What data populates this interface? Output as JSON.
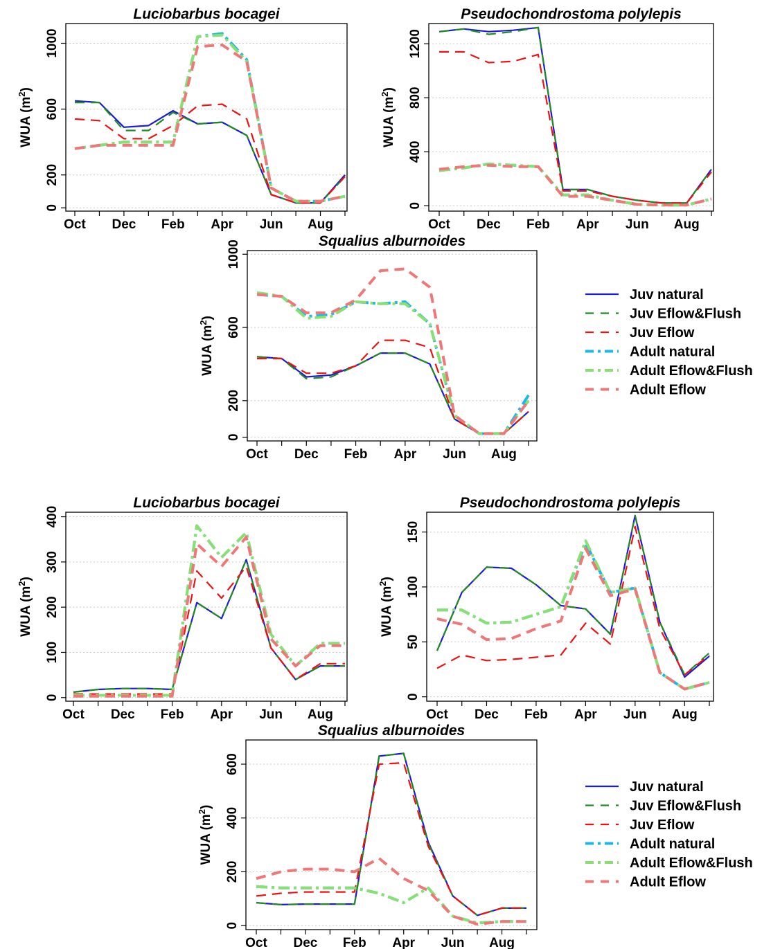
{
  "figure": {
    "colors": {
      "juv_natural": "#1a1adb",
      "juv_eflow_flush": "#228b22",
      "juv_eflow": "#ee1111",
      "adult_natural": "#1ab8ee",
      "adult_eflow_flush": "#88e070",
      "adult_eflow": "#ee7777"
    },
    "legends": [
      {
        "entries": [
          "Juv natural",
          "Juv Eflow&Flush",
          "Juv Eflow",
          "Adult natural",
          "Adult Eflow&Flush",
          "Adult Eflow"
        ]
      },
      {
        "entries": [
          "Juv natural",
          "Juv Eflow&Flush",
          "Juv Eflow",
          "Adult natural",
          "Adult Eflow&Flush",
          "Adult Eflow"
        ]
      }
    ]
  },
  "chart_data": [
    {
      "type": "line",
      "title": "Luciobarbus bocagei",
      "ylabel": "WUA (m²)",
      "x": [
        "Oct",
        "Nov",
        "Dec",
        "Jan",
        "Feb",
        "Mar",
        "Apr",
        "May",
        "Jun",
        "Jul",
        "Aug",
        "Sep"
      ],
      "xtick_labels": [
        "Oct",
        "Dec",
        "Feb",
        "Apr",
        "Jun",
        "Aug"
      ],
      "yticks": [
        0,
        200,
        600,
        1000
      ],
      "ylim": [
        -20,
        1120
      ],
      "grid": true,
      "series": [
        {
          "name": "Juv natural",
          "style": "solid",
          "color_key": "juv_natural",
          "values": [
            650,
            640,
            490,
            500,
            590,
            510,
            520,
            440,
            80,
            30,
            30,
            200
          ]
        },
        {
          "name": "Juv Eflow&Flush",
          "style": "dashed",
          "color_key": "juv_eflow_flush",
          "values": [
            640,
            640,
            470,
            470,
            580,
            510,
            520,
            440,
            80,
            30,
            30,
            190
          ]
        },
        {
          "name": "Juv Eflow",
          "style": "dashed",
          "color_key": "juv_eflow",
          "values": [
            540,
            530,
            420,
            420,
            500,
            620,
            630,
            540,
            80,
            30,
            30,
            190
          ]
        },
        {
          "name": "Adult natural",
          "style": "dashdot",
          "color_key": "adult_natural",
          "values": [
            360,
            380,
            400,
            400,
            400,
            1040,
            1060,
            900,
            120,
            40,
            40,
            70
          ]
        },
        {
          "name": "Adult Eflow&Flush",
          "style": "dashdot",
          "color_key": "adult_eflow_flush",
          "values": [
            360,
            380,
            400,
            400,
            400,
            1040,
            1050,
            890,
            120,
            40,
            40,
            70
          ]
        },
        {
          "name": "Adult Eflow",
          "style": "dashed",
          "color_key": "adult_eflow",
          "values": [
            360,
            380,
            380,
            380,
            380,
            980,
            990,
            890,
            120,
            40,
            40,
            70
          ]
        }
      ]
    },
    {
      "type": "line",
      "title": "Pseudochondrostoma polylepis",
      "ylabel": "WUA (m²)",
      "x": [
        "Oct",
        "Nov",
        "Dec",
        "Jan",
        "Feb",
        "Mar",
        "Apr",
        "May",
        "Jun",
        "Jul",
        "Aug",
        "Sep"
      ],
      "xtick_labels": [
        "Oct",
        "Dec",
        "Feb",
        "Apr",
        "Jun",
        "Aug"
      ],
      "yticks": [
        0,
        400,
        800,
        1200
      ],
      "ylim": [
        -40,
        1350
      ],
      "grid": true,
      "series": [
        {
          "name": "Juv natural",
          "style": "solid",
          "color_key": "juv_natural",
          "values": [
            1290,
            1310,
            1290,
            1300,
            1320,
            120,
            120,
            70,
            40,
            20,
            20,
            270
          ]
        },
        {
          "name": "Juv Eflow&Flush",
          "style": "dashed",
          "color_key": "juv_eflow_flush",
          "values": [
            1290,
            1310,
            1270,
            1290,
            1320,
            120,
            120,
            70,
            40,
            20,
            20,
            270
          ]
        },
        {
          "name": "Juv Eflow",
          "style": "dashed",
          "color_key": "juv_eflow",
          "values": [
            1140,
            1140,
            1060,
            1070,
            1120,
            110,
            110,
            70,
            40,
            20,
            20,
            250
          ]
        },
        {
          "name": "Adult natural",
          "style": "dashdot",
          "color_key": "adult_natural",
          "values": [
            260,
            280,
            310,
            300,
            290,
            80,
            80,
            40,
            10,
            5,
            5,
            50
          ]
        },
        {
          "name": "Adult Eflow&Flush",
          "style": "dashdot",
          "color_key": "adult_eflow_flush",
          "values": [
            260,
            280,
            310,
            300,
            290,
            80,
            80,
            40,
            10,
            5,
            5,
            50
          ]
        },
        {
          "name": "Adult Eflow",
          "style": "dashed",
          "color_key": "adult_eflow",
          "values": [
            270,
            290,
            300,
            290,
            290,
            70,
            70,
            40,
            10,
            5,
            5,
            50
          ]
        }
      ]
    },
    {
      "type": "line",
      "title": "Squalius alburnoides",
      "ylabel": "WUA (m²)",
      "x": [
        "Oct",
        "Nov",
        "Dec",
        "Jan",
        "Feb",
        "Mar",
        "Apr",
        "May",
        "Jun",
        "Jul",
        "Aug",
        "Sep"
      ],
      "xtick_labels": [
        "Oct",
        "Dec",
        "Feb",
        "Apr",
        "Jun",
        "Aug"
      ],
      "yticks": [
        0,
        200,
        600,
        1000
      ],
      "ylim": [
        -20,
        1020
      ],
      "grid": true,
      "series": [
        {
          "name": "Juv natural",
          "style": "solid",
          "color_key": "juv_natural",
          "values": [
            440,
            430,
            330,
            340,
            390,
            460,
            460,
            400,
            100,
            20,
            20,
            140
          ]
        },
        {
          "name": "Juv Eflow&Flush",
          "style": "dashed",
          "color_key": "juv_eflow_flush",
          "values": [
            440,
            430,
            320,
            330,
            390,
            460,
            460,
            400,
            100,
            20,
            20,
            140
          ]
        },
        {
          "name": "Juv Eflow",
          "style": "dashed",
          "color_key": "juv_eflow",
          "values": [
            430,
            430,
            350,
            350,
            390,
            530,
            530,
            490,
            100,
            20,
            20,
            140
          ]
        },
        {
          "name": "Adult natural",
          "style": "dashdot",
          "color_key": "adult_natural",
          "values": [
            780,
            770,
            660,
            670,
            740,
            730,
            740,
            620,
            120,
            20,
            20,
            230
          ]
        },
        {
          "name": "Adult Eflow&Flush",
          "style": "dashdot",
          "color_key": "adult_eflow_flush",
          "values": [
            790,
            770,
            650,
            660,
            740,
            730,
            730,
            620,
            120,
            20,
            20,
            200
          ]
        },
        {
          "name": "Adult Eflow",
          "style": "dashed",
          "color_key": "adult_eflow",
          "values": [
            780,
            770,
            680,
            680,
            750,
            910,
            920,
            820,
            120,
            20,
            20,
            200
          ]
        }
      ]
    },
    {
      "type": "line",
      "title": "Luciobarbus bocagei",
      "ylabel": "WUA (m²)",
      "x": [
        "Oct",
        "Nov",
        "Dec",
        "Jan",
        "Feb",
        "Mar",
        "Apr",
        "May",
        "Jun",
        "Jul",
        "Aug",
        "Sep"
      ],
      "xtick_labels": [
        "Oct",
        "Dec",
        "Feb",
        "Apr",
        "Jun",
        "Aug"
      ],
      "yticks": [
        0,
        100,
        200,
        300,
        400
      ],
      "ylim": [
        -8,
        410
      ],
      "grid": true,
      "series": [
        {
          "name": "Juv natural",
          "style": "solid",
          "color_key": "juv_natural",
          "values": [
            12,
            18,
            20,
            20,
            18,
            210,
            175,
            305,
            110,
            40,
            70,
            70
          ]
        },
        {
          "name": "Juv Eflow&Flush",
          "style": "dashed",
          "color_key": "juv_eflow_flush",
          "values": [
            12,
            18,
            20,
            20,
            18,
            210,
            175,
            305,
            110,
            40,
            70,
            70
          ]
        },
        {
          "name": "Juv Eflow",
          "style": "dashed",
          "color_key": "juv_eflow",
          "values": [
            8,
            8,
            8,
            8,
            8,
            280,
            220,
            290,
            110,
            40,
            75,
            75
          ]
        },
        {
          "name": "Adult natural",
          "style": "dashdot",
          "color_key": "adult_natural",
          "values": [
            5,
            5,
            5,
            5,
            5,
            380,
            310,
            365,
            140,
            70,
            120,
            120
          ]
        },
        {
          "name": "Adult Eflow&Flush",
          "style": "dashdot",
          "color_key": "adult_eflow_flush",
          "values": [
            5,
            5,
            5,
            5,
            5,
            380,
            310,
            365,
            140,
            70,
            120,
            120
          ]
        },
        {
          "name": "Adult Eflow",
          "style": "dashed",
          "color_key": "adult_eflow",
          "values": [
            3,
            3,
            3,
            3,
            3,
            340,
            290,
            355,
            130,
            70,
            115,
            115
          ]
        }
      ]
    },
    {
      "type": "line",
      "title": "Pseudochondrostoma polylepis",
      "ylabel": "WUA (m²)",
      "x": [
        "Oct",
        "Nov",
        "Dec",
        "Jan",
        "Feb",
        "Mar",
        "Apr",
        "May",
        "Jun",
        "Jul",
        "Aug",
        "Sep"
      ],
      "xtick_labels": [
        "Oct",
        "Dec",
        "Feb",
        "Apr",
        "Jun",
        "Aug"
      ],
      "yticks": [
        0,
        50,
        100,
        150
      ],
      "ylim": [
        -4,
        168
      ],
      "grid": true,
      "series": [
        {
          "name": "Juv natural",
          "style": "solid",
          "color_key": "juv_natural",
          "values": [
            42,
            95,
            118,
            117,
            102,
            83,
            80,
            57,
            165,
            68,
            18,
            37
          ]
        },
        {
          "name": "Juv Eflow&Flush",
          "style": "dashed",
          "color_key": "juv_eflow_flush",
          "values": [
            42,
            95,
            118,
            117,
            102,
            83,
            80,
            57,
            165,
            68,
            20,
            40
          ]
        },
        {
          "name": "Juv Eflow",
          "style": "dashed",
          "color_key": "juv_eflow",
          "values": [
            26,
            38,
            33,
            34,
            36,
            38,
            67,
            48,
            155,
            62,
            20,
            38
          ]
        },
        {
          "name": "Adult natural",
          "style": "dashdot",
          "color_key": "adult_natural",
          "values": [
            79,
            79,
            67,
            68,
            75,
            82,
            140,
            95,
            99,
            22,
            7,
            13
          ]
        },
        {
          "name": "Adult Eflow&Flush",
          "style": "dashdot",
          "color_key": "adult_eflow_flush",
          "values": [
            79,
            79,
            67,
            68,
            75,
            82,
            142,
            95,
            99,
            22,
            7,
            13
          ]
        },
        {
          "name": "Adult Eflow",
          "style": "dashed",
          "color_key": "adult_eflow",
          "values": [
            71,
            66,
            52,
            53,
            62,
            69,
            135,
            92,
            98,
            22,
            7,
            13
          ]
        }
      ]
    },
    {
      "type": "line",
      "title": "Squalius alburnoides",
      "ylabel": "WUA (m²)",
      "x": [
        "Oct",
        "Nov",
        "Dec",
        "Jan",
        "Feb",
        "Mar",
        "Apr",
        "May",
        "Jun",
        "Jul",
        "Aug",
        "Sep"
      ],
      "xtick_labels": [
        "Oct",
        "Dec",
        "Feb",
        "Apr",
        "Jun",
        "Aug"
      ],
      "yticks": [
        0,
        200,
        400,
        600
      ],
      "ylim": [
        -15,
        690
      ],
      "grid": true,
      "series": [
        {
          "name": "Juv natural",
          "style": "solid",
          "color_key": "juv_natural",
          "values": [
            85,
            78,
            80,
            80,
            80,
            630,
            640,
            310,
            110,
            38,
            65,
            65
          ]
        },
        {
          "name": "Juv Eflow&Flush",
          "style": "dashed",
          "color_key": "juv_eflow_flush",
          "values": [
            85,
            78,
            80,
            80,
            80,
            630,
            640,
            305,
            110,
            38,
            65,
            65
          ]
        },
        {
          "name": "Juv Eflow",
          "style": "dashed",
          "color_key": "juv_eflow",
          "values": [
            110,
            120,
            125,
            125,
            125,
            600,
            605,
            295,
            110,
            38,
            65,
            65
          ]
        },
        {
          "name": "Adult natural",
          "style": "dashdot",
          "color_key": "adult_natural",
          "values": [
            145,
            140,
            140,
            140,
            140,
            120,
            85,
            140,
            35,
            10,
            15,
            15
          ]
        },
        {
          "name": "Adult Eflow&Flush",
          "style": "dashdot",
          "color_key": "adult_eflow_flush",
          "values": [
            145,
            140,
            140,
            140,
            140,
            120,
            85,
            140,
            35,
            10,
            15,
            15
          ]
        },
        {
          "name": "Adult Eflow",
          "style": "dashed",
          "color_key": "adult_eflow",
          "values": [
            175,
            200,
            210,
            210,
            200,
            250,
            175,
            130,
            35,
            5,
            15,
            15
          ]
        }
      ]
    }
  ]
}
